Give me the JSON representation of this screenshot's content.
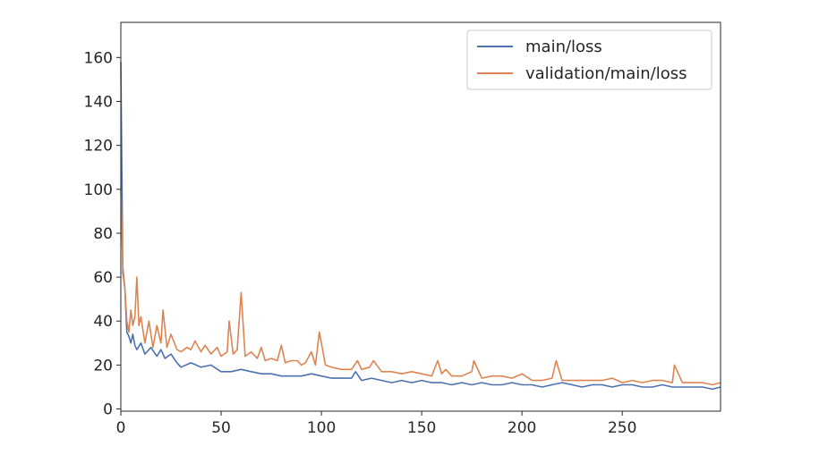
{
  "chart_data": {
    "type": "line",
    "title": "",
    "xlabel": "",
    "ylabel": "",
    "xlim": [
      0,
      299
    ],
    "ylim": [
      -1,
      176
    ],
    "xticks": [
      0,
      50,
      100,
      150,
      200,
      250
    ],
    "yticks": [
      0,
      20,
      40,
      60,
      80,
      100,
      120,
      140,
      160
    ],
    "grid": false,
    "legend_position": "top-right",
    "series": [
      {
        "name": "main/loss",
        "color": "#4c72b0",
        "x": [
          0,
          1,
          2,
          3,
          4,
          5,
          6,
          7,
          8,
          10,
          12,
          15,
          18,
          20,
          22,
          25,
          28,
          30,
          35,
          40,
          45,
          50,
          55,
          60,
          65,
          70,
          75,
          80,
          85,
          90,
          95,
          100,
          105,
          110,
          115,
          117,
          120,
          125,
          130,
          135,
          140,
          145,
          150,
          155,
          160,
          165,
          170,
          175,
          180,
          185,
          190,
          195,
          200,
          205,
          210,
          215,
          220,
          225,
          230,
          235,
          240,
          245,
          250,
          255,
          260,
          265,
          270,
          275,
          280,
          285,
          290,
          295,
          299
        ],
        "y": [
          158,
          62,
          55,
          35,
          33,
          30,
          34,
          29,
          27,
          30,
          25,
          28,
          24,
          27,
          23,
          25,
          21,
          19,
          21,
          19,
          20,
          17,
          17,
          18,
          17,
          16,
          16,
          15,
          15,
          15,
          16,
          15,
          14,
          14,
          14,
          17,
          13,
          14,
          13,
          12,
          13,
          12,
          13,
          12,
          12,
          11,
          12,
          11,
          12,
          11,
          11,
          12,
          11,
          11,
          10,
          11,
          12,
          11,
          10,
          11,
          11,
          10,
          11,
          11,
          10,
          10,
          11,
          10,
          10,
          10,
          10,
          9,
          10
        ]
      },
      {
        "name": "validation/main/loss",
        "color": "#dd8452",
        "x": [
          0,
          1,
          2,
          3,
          4,
          5,
          6,
          7,
          8,
          9,
          10,
          12,
          14,
          16,
          18,
          20,
          21,
          23,
          25,
          28,
          30,
          33,
          35,
          37,
          40,
          42,
          45,
          48,
          50,
          53,
          54,
          56,
          58,
          60,
          62,
          65,
          68,
          70,
          72,
          75,
          78,
          80,
          82,
          85,
          88,
          90,
          92,
          95,
          97,
          99,
          102,
          105,
          110,
          115,
          118,
          120,
          124,
          126,
          130,
          135,
          140,
          145,
          150,
          155,
          158,
          160,
          162,
          165,
          170,
          175,
          176,
          180,
          185,
          190,
          195,
          200,
          205,
          210,
          215,
          217,
          220,
          225,
          230,
          235,
          240,
          245,
          250,
          255,
          260,
          265,
          270,
          275,
          276,
          280,
          285,
          290,
          295,
          299
        ],
        "y": [
          100,
          65,
          55,
          40,
          35,
          45,
          38,
          42,
          60,
          38,
          42,
          30,
          40,
          28,
          38,
          30,
          45,
          28,
          34,
          27,
          26,
          28,
          27,
          31,
          26,
          29,
          25,
          28,
          24,
          26,
          40,
          25,
          27,
          53,
          24,
          26,
          23,
          28,
          22,
          23,
          22,
          29,
          21,
          22,
          22,
          20,
          21,
          26,
          20,
          35,
          20,
          19,
          18,
          18,
          22,
          18,
          19,
          22,
          17,
          17,
          16,
          17,
          16,
          15,
          22,
          16,
          18,
          15,
          15,
          17,
          22,
          14,
          15,
          15,
          14,
          16,
          13,
          13,
          14,
          22,
          13,
          13,
          13,
          13,
          13,
          14,
          12,
          13,
          12,
          13,
          13,
          12,
          20,
          12,
          12,
          12,
          11,
          12
        ]
      }
    ]
  }
}
